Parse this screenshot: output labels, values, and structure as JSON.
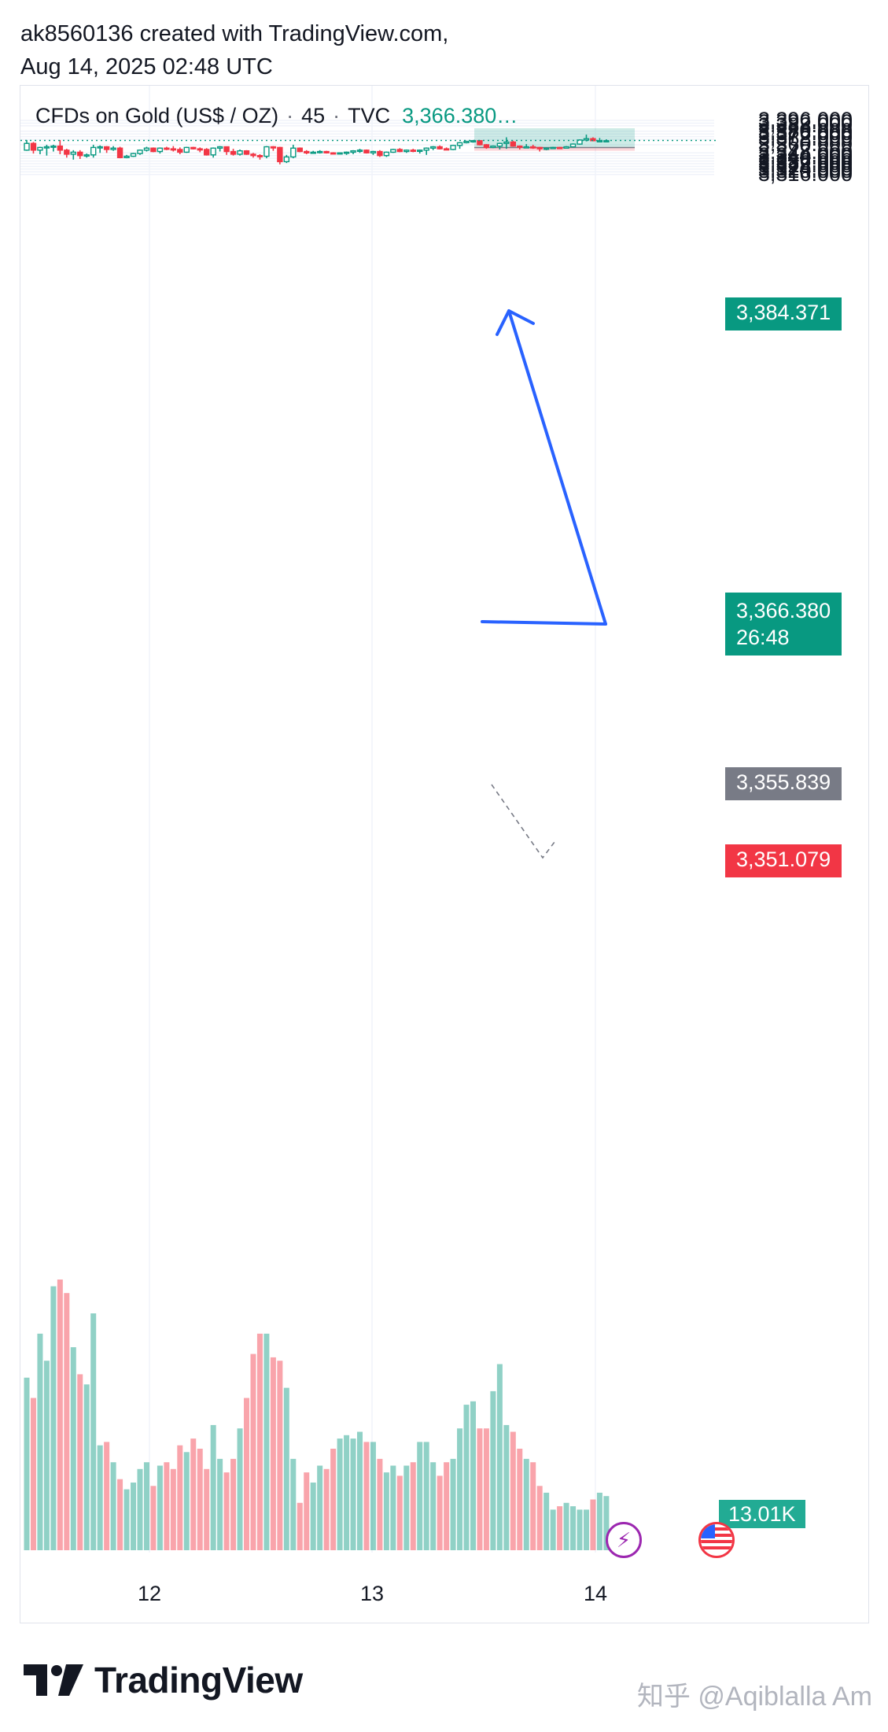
{
  "header": {
    "line1": "ak8560136 created with TradingView.com,",
    "line2": "Aug 14, 2025 02:48 UTC"
  },
  "legend": {
    "symbol": "CFDs on Gold (US$ / OZ)",
    "interval": "45",
    "exchange": "TVC",
    "price": "3,366.380…",
    "sep": "·"
  },
  "tags": {
    "target": "3,384.371",
    "current_price": "3,366.380",
    "countdown": "26:48",
    "entry": "3,355.839",
    "stop": "3,351.079",
    "volume": "13.01K"
  },
  "footer": {
    "brand": "TradingView"
  },
  "watermark": "知乎 @Aqiblalla Am",
  "colors": {
    "up": "#089981",
    "down": "#f23645",
    "arrow": "#2962ff",
    "profit_zone": "#089981",
    "loss_zone": "#f23645",
    "neutral_tag": "#787b86"
  },
  "icons": [
    "tradingview-logo-icon",
    "lightning-icon",
    "us-flag-icon"
  ],
  "chart_data": {
    "type": "candlestick",
    "y_ticks": [
      "3,396.000",
      "3,392.000",
      "3,388.000",
      "3,380.000",
      "3,376.000",
      "3,372.000",
      "3,368.000",
      "3,360.000",
      "3,348.000",
      "3,344.000",
      "3,340.000",
      "3,336.000",
      "3,332.000",
      "3,328.000",
      "3,324.000",
      "3,320.000",
      "3,316.000"
    ],
    "x_ticks": [
      "12",
      "13",
      "14"
    ],
    "ylim": [
      3309,
      3398
    ],
    "position_tool": {
      "target": 3384.371,
      "entry": 3355.839,
      "stop": 3351.079
    },
    "last_price": 3366.38,
    "candles": [
      {
        "o": 3352,
        "h": 3367,
        "l": 3351,
        "c": 3362
      },
      {
        "o": 3362,
        "h": 3364,
        "l": 3347,
        "c": 3352
      },
      {
        "o": 3352,
        "h": 3357,
        "l": 3346,
        "c": 3356
      },
      {
        "o": 3356,
        "h": 3360,
        "l": 3344,
        "c": 3357
      },
      {
        "o": 3357,
        "h": 3360,
        "l": 3350,
        "c": 3358
      },
      {
        "o": 3358,
        "h": 3367,
        "l": 3346,
        "c": 3352
      },
      {
        "o": 3352,
        "h": 3354,
        "l": 3341,
        "c": 3346
      },
      {
        "o": 3346,
        "h": 3352,
        "l": 3338,
        "c": 3349
      },
      {
        "o": 3349,
        "h": 3352,
        "l": 3339,
        "c": 3344
      },
      {
        "o": 3344,
        "h": 3347,
        "l": 3341,
        "c": 3345
      },
      {
        "o": 3345,
        "h": 3360,
        "l": 3341,
        "c": 3356
      },
      {
        "o": 3356,
        "h": 3359,
        "l": 3348,
        "c": 3357
      },
      {
        "o": 3357,
        "h": 3358,
        "l": 3348,
        "c": 3353
      },
      {
        "o": 3353,
        "h": 3358,
        "l": 3351,
        "c": 3355
      },
      {
        "o": 3355,
        "h": 3357,
        "l": 3340,
        "c": 3341
      },
      {
        "o": 3341,
        "h": 3345,
        "l": 3340,
        "c": 3343
      },
      {
        "o": 3343,
        "h": 3348,
        "l": 3342,
        "c": 3347
      },
      {
        "o": 3347,
        "h": 3353,
        "l": 3345,
        "c": 3352
      },
      {
        "o": 3352,
        "h": 3357,
        "l": 3350,
        "c": 3355
      },
      {
        "o": 3355,
        "h": 3356,
        "l": 3349,
        "c": 3350
      },
      {
        "o": 3350,
        "h": 3356,
        "l": 3347,
        "c": 3355
      },
      {
        "o": 3355,
        "h": 3357,
        "l": 3352,
        "c": 3354
      },
      {
        "o": 3354,
        "h": 3358,
        "l": 3350,
        "c": 3353
      },
      {
        "o": 3353,
        "h": 3356,
        "l": 3346,
        "c": 3349
      },
      {
        "o": 3349,
        "h": 3357,
        "l": 3348,
        "c": 3356
      },
      {
        "o": 3356,
        "h": 3357,
        "l": 3353,
        "c": 3354
      },
      {
        "o": 3354,
        "h": 3356,
        "l": 3349,
        "c": 3353
      },
      {
        "o": 3353,
        "h": 3355,
        "l": 3344,
        "c": 3345
      },
      {
        "o": 3345,
        "h": 3356,
        "l": 3341,
        "c": 3355
      },
      {
        "o": 3355,
        "h": 3358,
        "l": 3350,
        "c": 3357
      },
      {
        "o": 3357,
        "h": 3357,
        "l": 3345,
        "c": 3350
      },
      {
        "o": 3350,
        "h": 3354,
        "l": 3344,
        "c": 3346
      },
      {
        "o": 3346,
        "h": 3353,
        "l": 3344,
        "c": 3351
      },
      {
        "o": 3351,
        "h": 3352,
        "l": 3345,
        "c": 3346
      },
      {
        "o": 3346,
        "h": 3348,
        "l": 3341,
        "c": 3344
      },
      {
        "o": 3344,
        "h": 3346,
        "l": 3338,
        "c": 3343
      },
      {
        "o": 3343,
        "h": 3358,
        "l": 3340,
        "c": 3357
      },
      {
        "o": 3357,
        "h": 3358,
        "l": 3351,
        "c": 3356
      },
      {
        "o": 3356,
        "h": 3357,
        "l": 3331,
        "c": 3335
      },
      {
        "o": 3335,
        "h": 3345,
        "l": 3333,
        "c": 3342
      },
      {
        "o": 3342,
        "h": 3360,
        "l": 3340,
        "c": 3355
      },
      {
        "o": 3355,
        "h": 3356,
        "l": 3349,
        "c": 3350
      },
      {
        "o": 3350,
        "h": 3352,
        "l": 3346,
        "c": 3348
      },
      {
        "o": 3348,
        "h": 3351,
        "l": 3347,
        "c": 3349
      },
      {
        "o": 3349,
        "h": 3352,
        "l": 3347,
        "c": 3350
      },
      {
        "o": 3350,
        "h": 3351,
        "l": 3347,
        "c": 3348
      },
      {
        "o": 3348,
        "h": 3349,
        "l": 3346,
        "c": 3347
      },
      {
        "o": 3347,
        "h": 3348,
        "l": 3346,
        "c": 3348
      },
      {
        "o": 3348,
        "h": 3350,
        "l": 3345,
        "c": 3349
      },
      {
        "o": 3349,
        "h": 3352,
        "l": 3346,
        "c": 3351
      },
      {
        "o": 3351,
        "h": 3354,
        "l": 3348,
        "c": 3352
      },
      {
        "o": 3352,
        "h": 3353,
        "l": 3347,
        "c": 3348
      },
      {
        "o": 3348,
        "h": 3351,
        "l": 3345,
        "c": 3350
      },
      {
        "o": 3350,
        "h": 3352,
        "l": 3342,
        "c": 3344
      },
      {
        "o": 3344,
        "h": 3350,
        "l": 3342,
        "c": 3349
      },
      {
        "o": 3349,
        "h": 3354,
        "l": 3348,
        "c": 3353
      },
      {
        "o": 3353,
        "h": 3355,
        "l": 3349,
        "c": 3350
      },
      {
        "o": 3350,
        "h": 3353,
        "l": 3348,
        "c": 3352
      },
      {
        "o": 3352,
        "h": 3354,
        "l": 3349,
        "c": 3351
      },
      {
        "o": 3351,
        "h": 3353,
        "l": 3347,
        "c": 3352
      },
      {
        "o": 3352,
        "h": 3356,
        "l": 3345,
        "c": 3355
      },
      {
        "o": 3355,
        "h": 3358,
        "l": 3352,
        "c": 3357
      },
      {
        "o": 3357,
        "h": 3359,
        "l": 3353,
        "c": 3354
      },
      {
        "o": 3354,
        "h": 3356,
        "l": 3352,
        "c": 3353
      },
      {
        "o": 3353,
        "h": 3360,
        "l": 3352,
        "c": 3359
      },
      {
        "o": 3359,
        "h": 3364,
        "l": 3354,
        "c": 3363
      },
      {
        "o": 3363,
        "h": 3366,
        "l": 3362,
        "c": 3365
      },
      {
        "o": 3365,
        "h": 3367,
        "l": 3363,
        "c": 3366
      },
      {
        "o": 3366,
        "h": 3367,
        "l": 3359,
        "c": 3360
      },
      {
        "o": 3360,
        "h": 3361,
        "l": 3354,
        "c": 3356
      },
      {
        "o": 3356,
        "h": 3359,
        "l": 3355,
        "c": 3358
      },
      {
        "o": 3358,
        "h": 3363,
        "l": 3353,
        "c": 3362
      },
      {
        "o": 3362,
        "h": 3371,
        "l": 3354,
        "c": 3364
      },
      {
        "o": 3364,
        "h": 3366,
        "l": 3357,
        "c": 3358
      },
      {
        "o": 3358,
        "h": 3359,
        "l": 3353,
        "c": 3357
      },
      {
        "o": 3357,
        "h": 3361,
        "l": 3356,
        "c": 3357
      },
      {
        "o": 3357,
        "h": 3360,
        "l": 3354,
        "c": 3356
      },
      {
        "o": 3356,
        "h": 3357,
        "l": 3350,
        "c": 3354
      },
      {
        "o": 3354,
        "h": 3356,
        "l": 3352,
        "c": 3355
      },
      {
        "o": 3355,
        "h": 3357,
        "l": 3354,
        "c": 3356
      },
      {
        "o": 3356,
        "h": 3357,
        "l": 3354,
        "c": 3355
      },
      {
        "o": 3355,
        "h": 3358,
        "l": 3355,
        "c": 3357
      },
      {
        "o": 3357,
        "h": 3362,
        "l": 3356,
        "c": 3361
      },
      {
        "o": 3361,
        "h": 3368,
        "l": 3360,
        "c": 3367
      },
      {
        "o": 3367,
        "h": 3375,
        "l": 3365,
        "c": 3369
      },
      {
        "o": 3369,
        "h": 3371,
        "l": 3365,
        "c": 3366
      },
      {
        "o": 3366,
        "h": 3370,
        "l": 3365,
        "c": 3366
      },
      {
        "o": 3366,
        "h": 3368,
        "l": 3364,
        "c": 3366
      }
    ],
    "volume": [
      0.51,
      0.45,
      0.64,
      0.56,
      0.78,
      0.8,
      0.76,
      0.6,
      0.52,
      0.49,
      0.7,
      0.31,
      0.32,
      0.26,
      0.21,
      0.18,
      0.2,
      0.24,
      0.26,
      0.19,
      0.25,
      0.26,
      0.24,
      0.31,
      0.29,
      0.33,
      0.3,
      0.24,
      0.37,
      0.27,
      0.23,
      0.27,
      0.36,
      0.45,
      0.58,
      0.64,
      0.64,
      0.57,
      0.56,
      0.48,
      0.27,
      0.14,
      0.23,
      0.2,
      0.25,
      0.24,
      0.3,
      0.33,
      0.34,
      0.33,
      0.35,
      0.32,
      0.32,
      0.27,
      0.23,
      0.25,
      0.22,
      0.25,
      0.26,
      0.32,
      0.32,
      0.26,
      0.22,
      0.26,
      0.27,
      0.36,
      0.43,
      0.44,
      0.36,
      0.36,
      0.47,
      0.55,
      0.37,
      0.35,
      0.3,
      0.27,
      0.26,
      0.19,
      0.17,
      0.12,
      0.13,
      0.14,
      0.13,
      0.12,
      0.12,
      0.15,
      0.17,
      0.16
    ]
  }
}
